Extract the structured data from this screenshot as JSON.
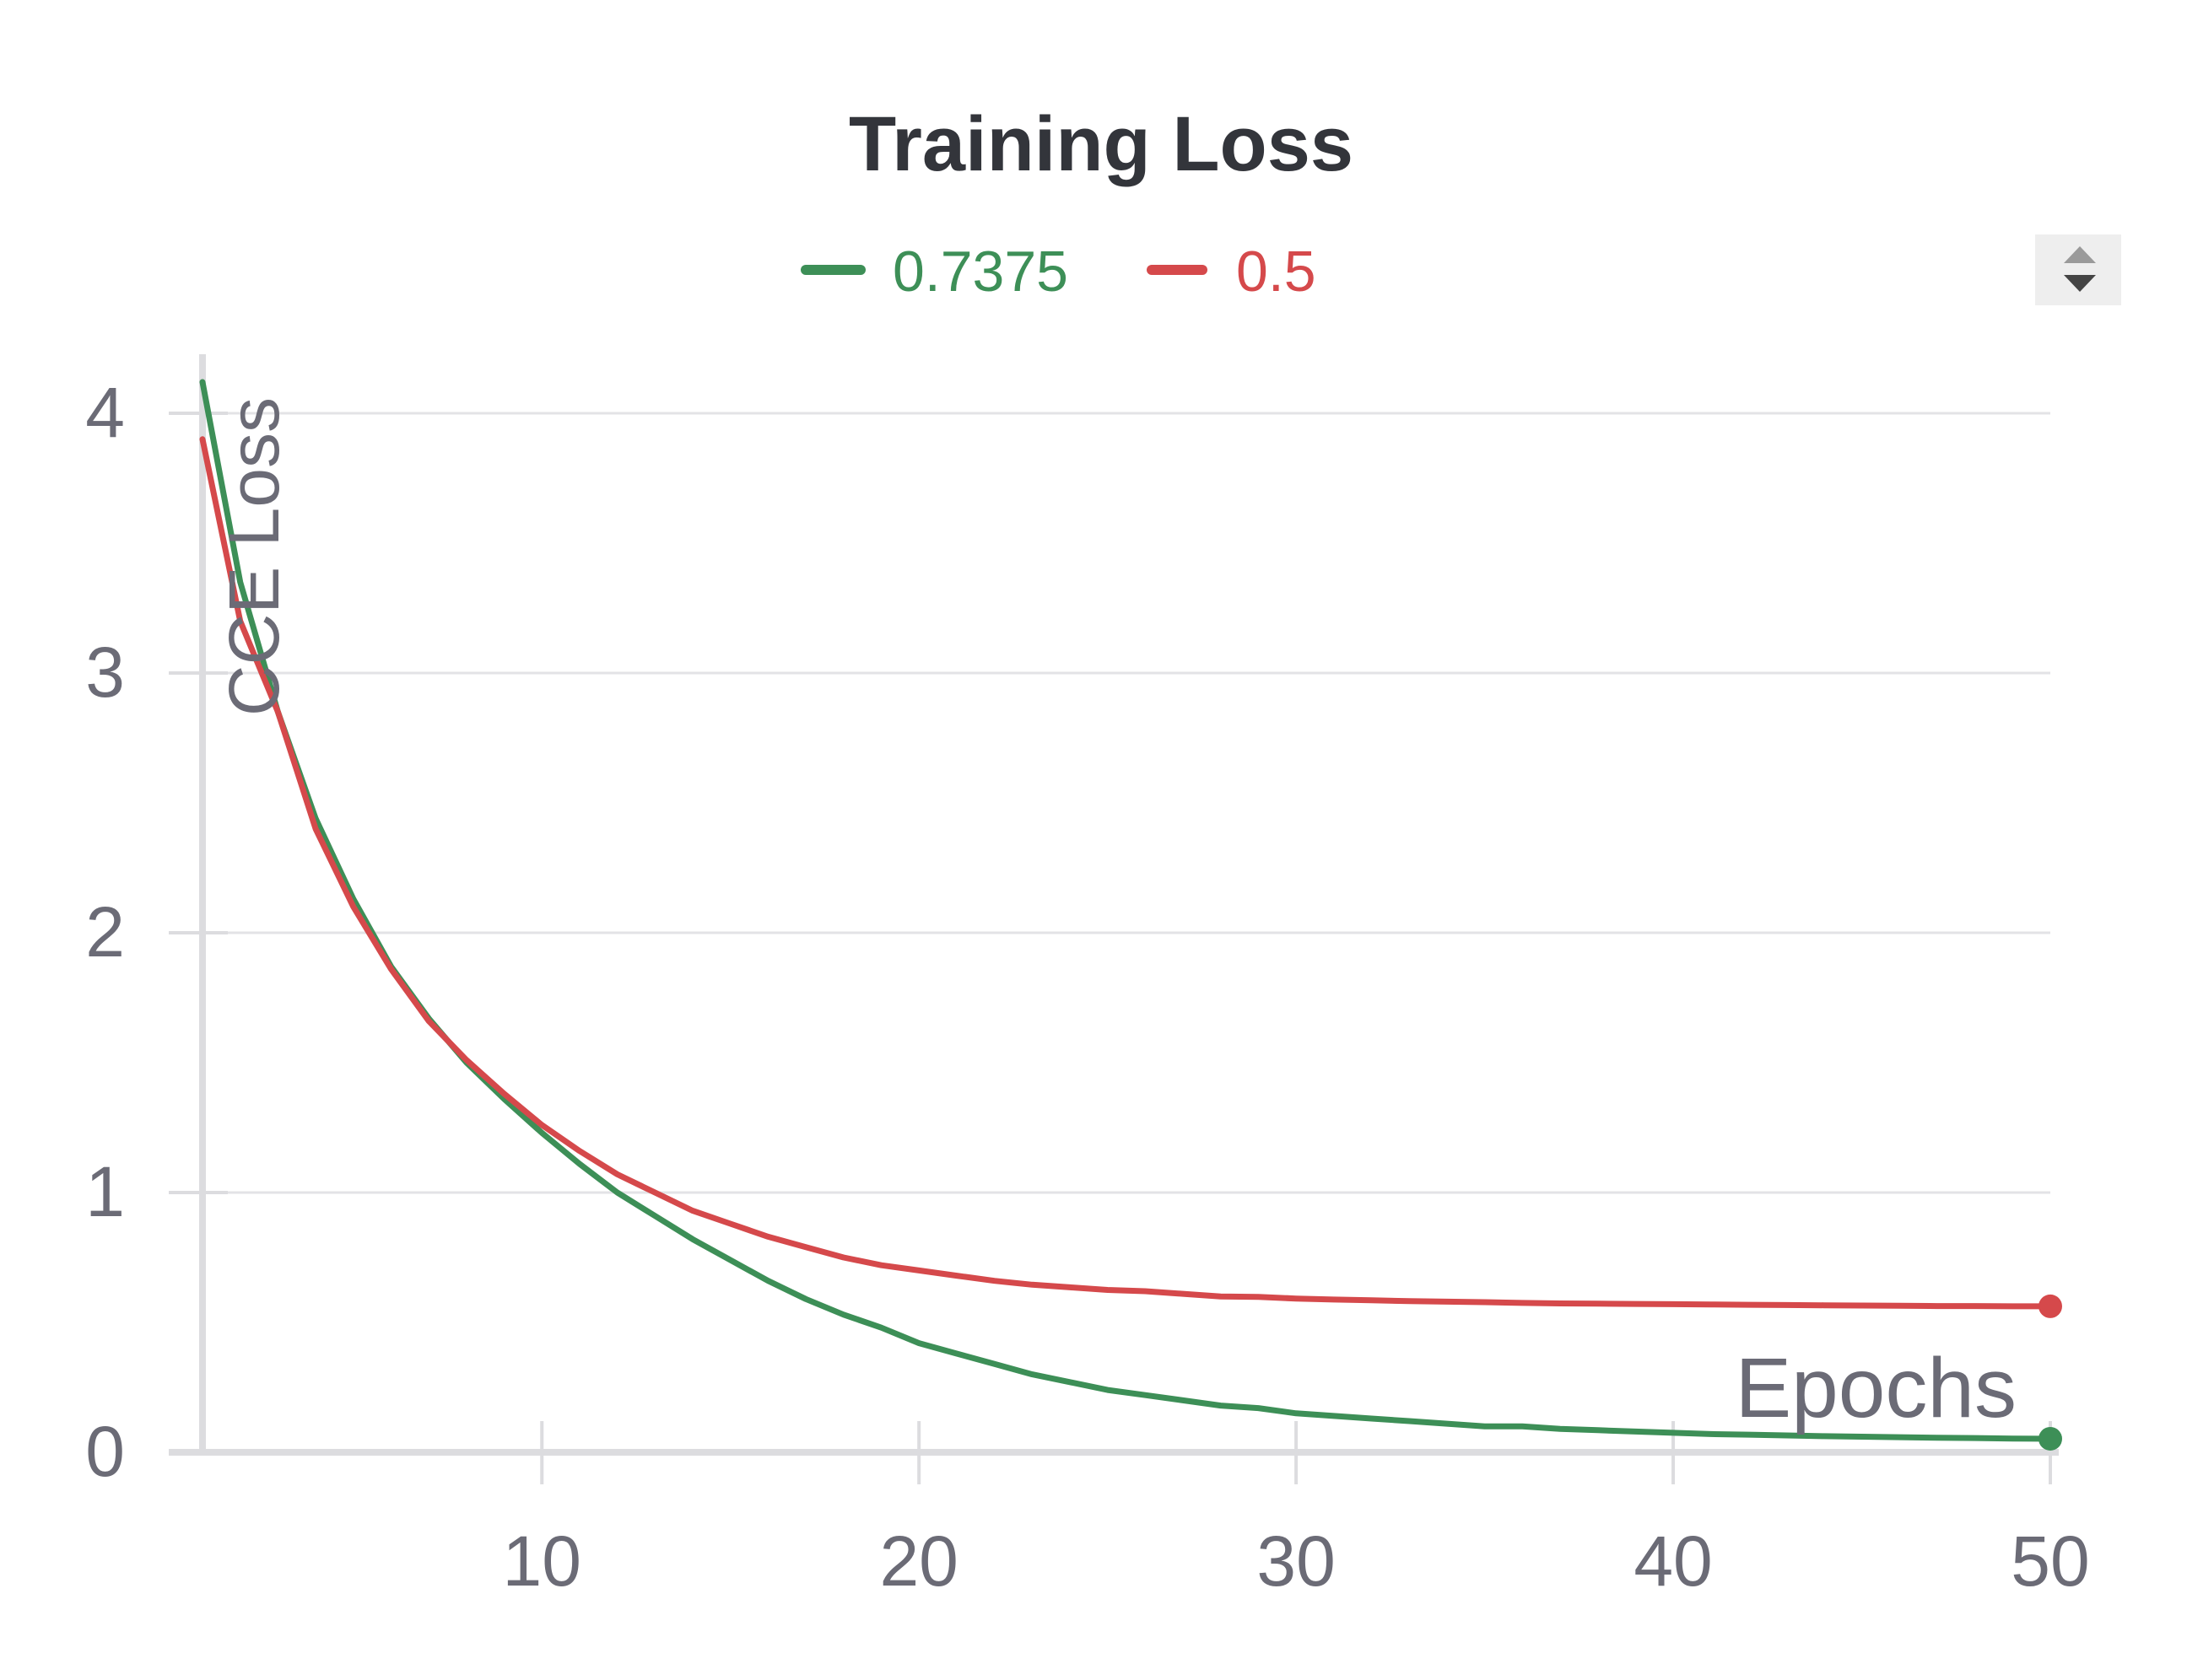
{
  "chart_data": {
    "type": "line",
    "title": "Training Loss",
    "xlabel": "Epochs",
    "ylabel": "CCE Loss",
    "xlim": [
      1,
      50
    ],
    "ylim": [
      0,
      4.2
    ],
    "x_ticks": [
      10,
      20,
      30,
      40,
      50
    ],
    "y_ticks": [
      0,
      1,
      2,
      3,
      4
    ],
    "grid": "horizontal",
    "legend_position": "top-center",
    "x": [
      1,
      2,
      3,
      4,
      5,
      6,
      7,
      8,
      9,
      10,
      11,
      12,
      13,
      14,
      15,
      16,
      17,
      18,
      19,
      20,
      21,
      22,
      23,
      24,
      25,
      26,
      27,
      28,
      29,
      30,
      31,
      32,
      33,
      34,
      35,
      36,
      37,
      38,
      39,
      40,
      41,
      42,
      43,
      44,
      45,
      46,
      47,
      48,
      49,
      50
    ],
    "series": [
      {
        "name": "0.7375",
        "color": "#3d8f57",
        "values": [
          4.12,
          3.35,
          2.85,
          2.44,
          2.13,
          1.87,
          1.67,
          1.5,
          1.36,
          1.23,
          1.11,
          1.0,
          0.91,
          0.82,
          0.74,
          0.66,
          0.59,
          0.53,
          0.48,
          0.42,
          0.38,
          0.34,
          0.3,
          0.27,
          0.24,
          0.22,
          0.2,
          0.18,
          0.17,
          0.15,
          0.14,
          0.13,
          0.12,
          0.11,
          0.1,
          0.1,
          0.09,
          0.085,
          0.08,
          0.075,
          0.07,
          0.068,
          0.065,
          0.062,
          0.06,
          0.058,
          0.056,
          0.055,
          0.053,
          0.052
        ]
      },
      {
        "name": "0.5",
        "color": "#d5494b",
        "values": [
          3.9,
          3.2,
          2.85,
          2.4,
          2.1,
          1.86,
          1.66,
          1.51,
          1.38,
          1.26,
          1.16,
          1.07,
          1.0,
          0.93,
          0.88,
          0.83,
          0.79,
          0.75,
          0.72,
          0.7,
          0.68,
          0.66,
          0.645,
          0.635,
          0.625,
          0.62,
          0.61,
          0.6,
          0.598,
          0.592,
          0.588,
          0.585,
          0.582,
          0.58,
          0.578,
          0.575,
          0.573,
          0.572,
          0.571,
          0.57,
          0.569,
          0.568,
          0.567,
          0.566,
          0.565,
          0.564,
          0.563,
          0.563,
          0.562,
          0.562
        ]
      }
    ]
  }
}
